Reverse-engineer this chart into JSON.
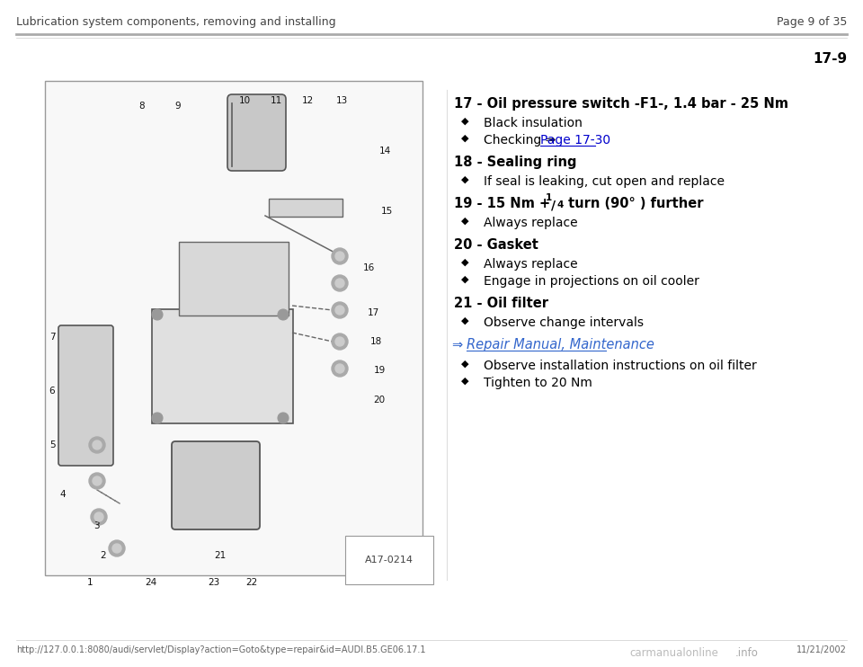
{
  "page_title_left": "Lubrication system components, removing and installing",
  "page_title_right": "Page 9 of 35",
  "section_number": "17-9",
  "bg_color": "#ffffff",
  "text_color": "#000000",
  "link_color": "#0000cc",
  "italic_link_color": "#3366cc",
  "footer_text": "http://127.0.0.1:8080/audi/servlet/Display?action=Goto&type=repair&id=AUDI.B5.GE06.17.1",
  "footer_right": "11/21/2002",
  "items": [
    {
      "num": "17",
      "title": "Oil pressure switch -F1-, 1.4 bar - 25 Nm",
      "bullets": [
        {
          "text": "Black insulation",
          "link": false
        },
        {
          "text": "Checking ⇒ ",
          "link_text": "Page 17-30",
          "link": true
        }
      ]
    },
    {
      "num": "18",
      "title": "Sealing ring",
      "bullets": [
        {
          "text": "If seal is leaking, cut open and replace",
          "link": false
        }
      ]
    },
    {
      "num": "19",
      "title_special": true,
      "bullets": [
        {
          "text": "Always replace",
          "link": false
        }
      ]
    },
    {
      "num": "20",
      "title": "Gasket",
      "bullets": [
        {
          "text": "Always replace",
          "link": false
        },
        {
          "text": "Engage in projections on oil cooler",
          "link": false
        }
      ]
    },
    {
      "num": "21",
      "title": "Oil filter",
      "bullets": [
        {
          "text": "Observe change intervals",
          "link": false
        }
      ]
    }
  ],
  "repair_manual_bullets": [
    "Observe installation instructions on oil filter",
    "Tighten to 20 Nm"
  ],
  "diagram_label": "A17-0214"
}
